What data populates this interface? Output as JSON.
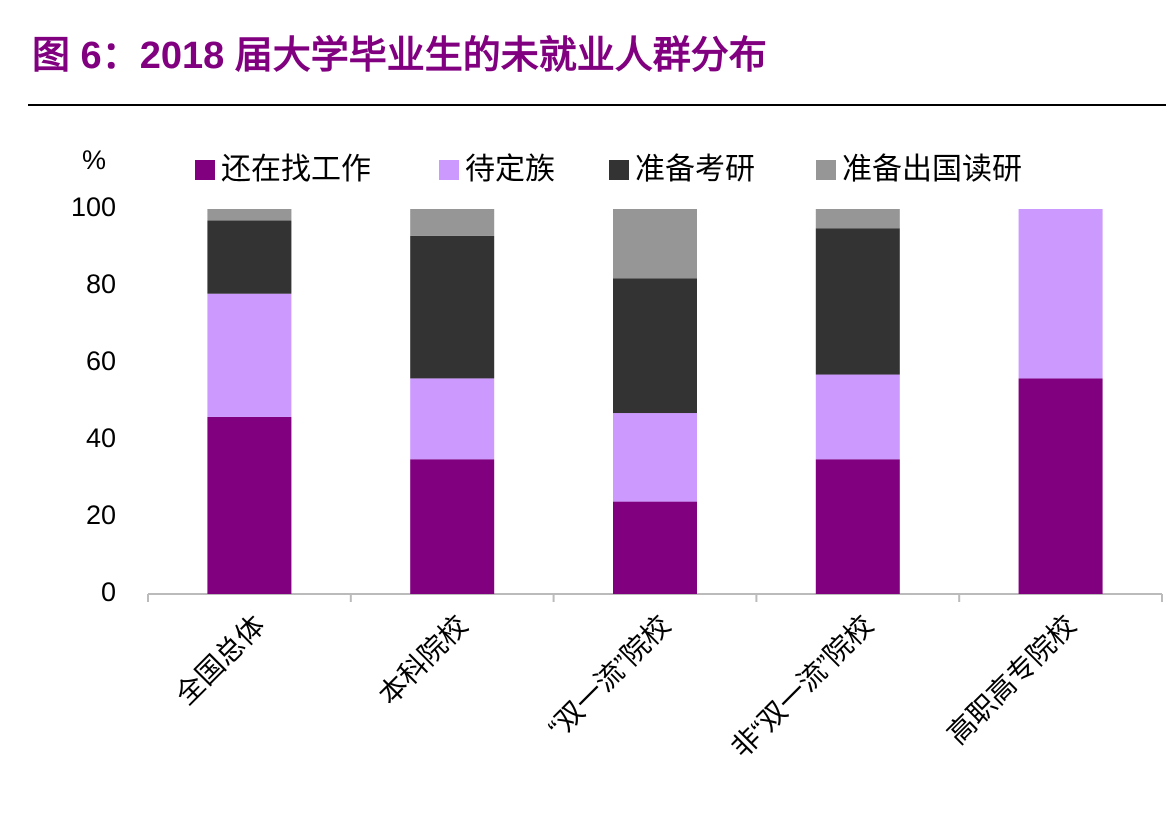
{
  "chart_data": {
    "type": "bar",
    "stacked": true,
    "title": "图 6：2018 届大学毕业生的未就业人群分布",
    "y_label": "%",
    "categories": [
      "全国总体",
      "本科院校",
      "“双一流”院校",
      "非“双一流”院校",
      "高职高专院校"
    ],
    "series": [
      {
        "name": "还在找工作",
        "color": "#800080",
        "values": [
          46,
          35,
          24,
          35,
          56
        ]
      },
      {
        "name": "待定族",
        "color": "#cc99ff",
        "values": [
          32,
          21,
          23,
          22,
          44
        ]
      },
      {
        "name": "准备考研",
        "color": "#333333",
        "values": [
          19,
          37,
          35,
          38,
          0
        ]
      },
      {
        "name": "准备出国读研",
        "color": "#969696",
        "values": [
          3,
          7,
          18,
          5,
          0
        ]
      }
    ],
    "ylim": [
      0,
      100
    ],
    "yticks": [
      0,
      20,
      40,
      60,
      80,
      100
    ]
  }
}
